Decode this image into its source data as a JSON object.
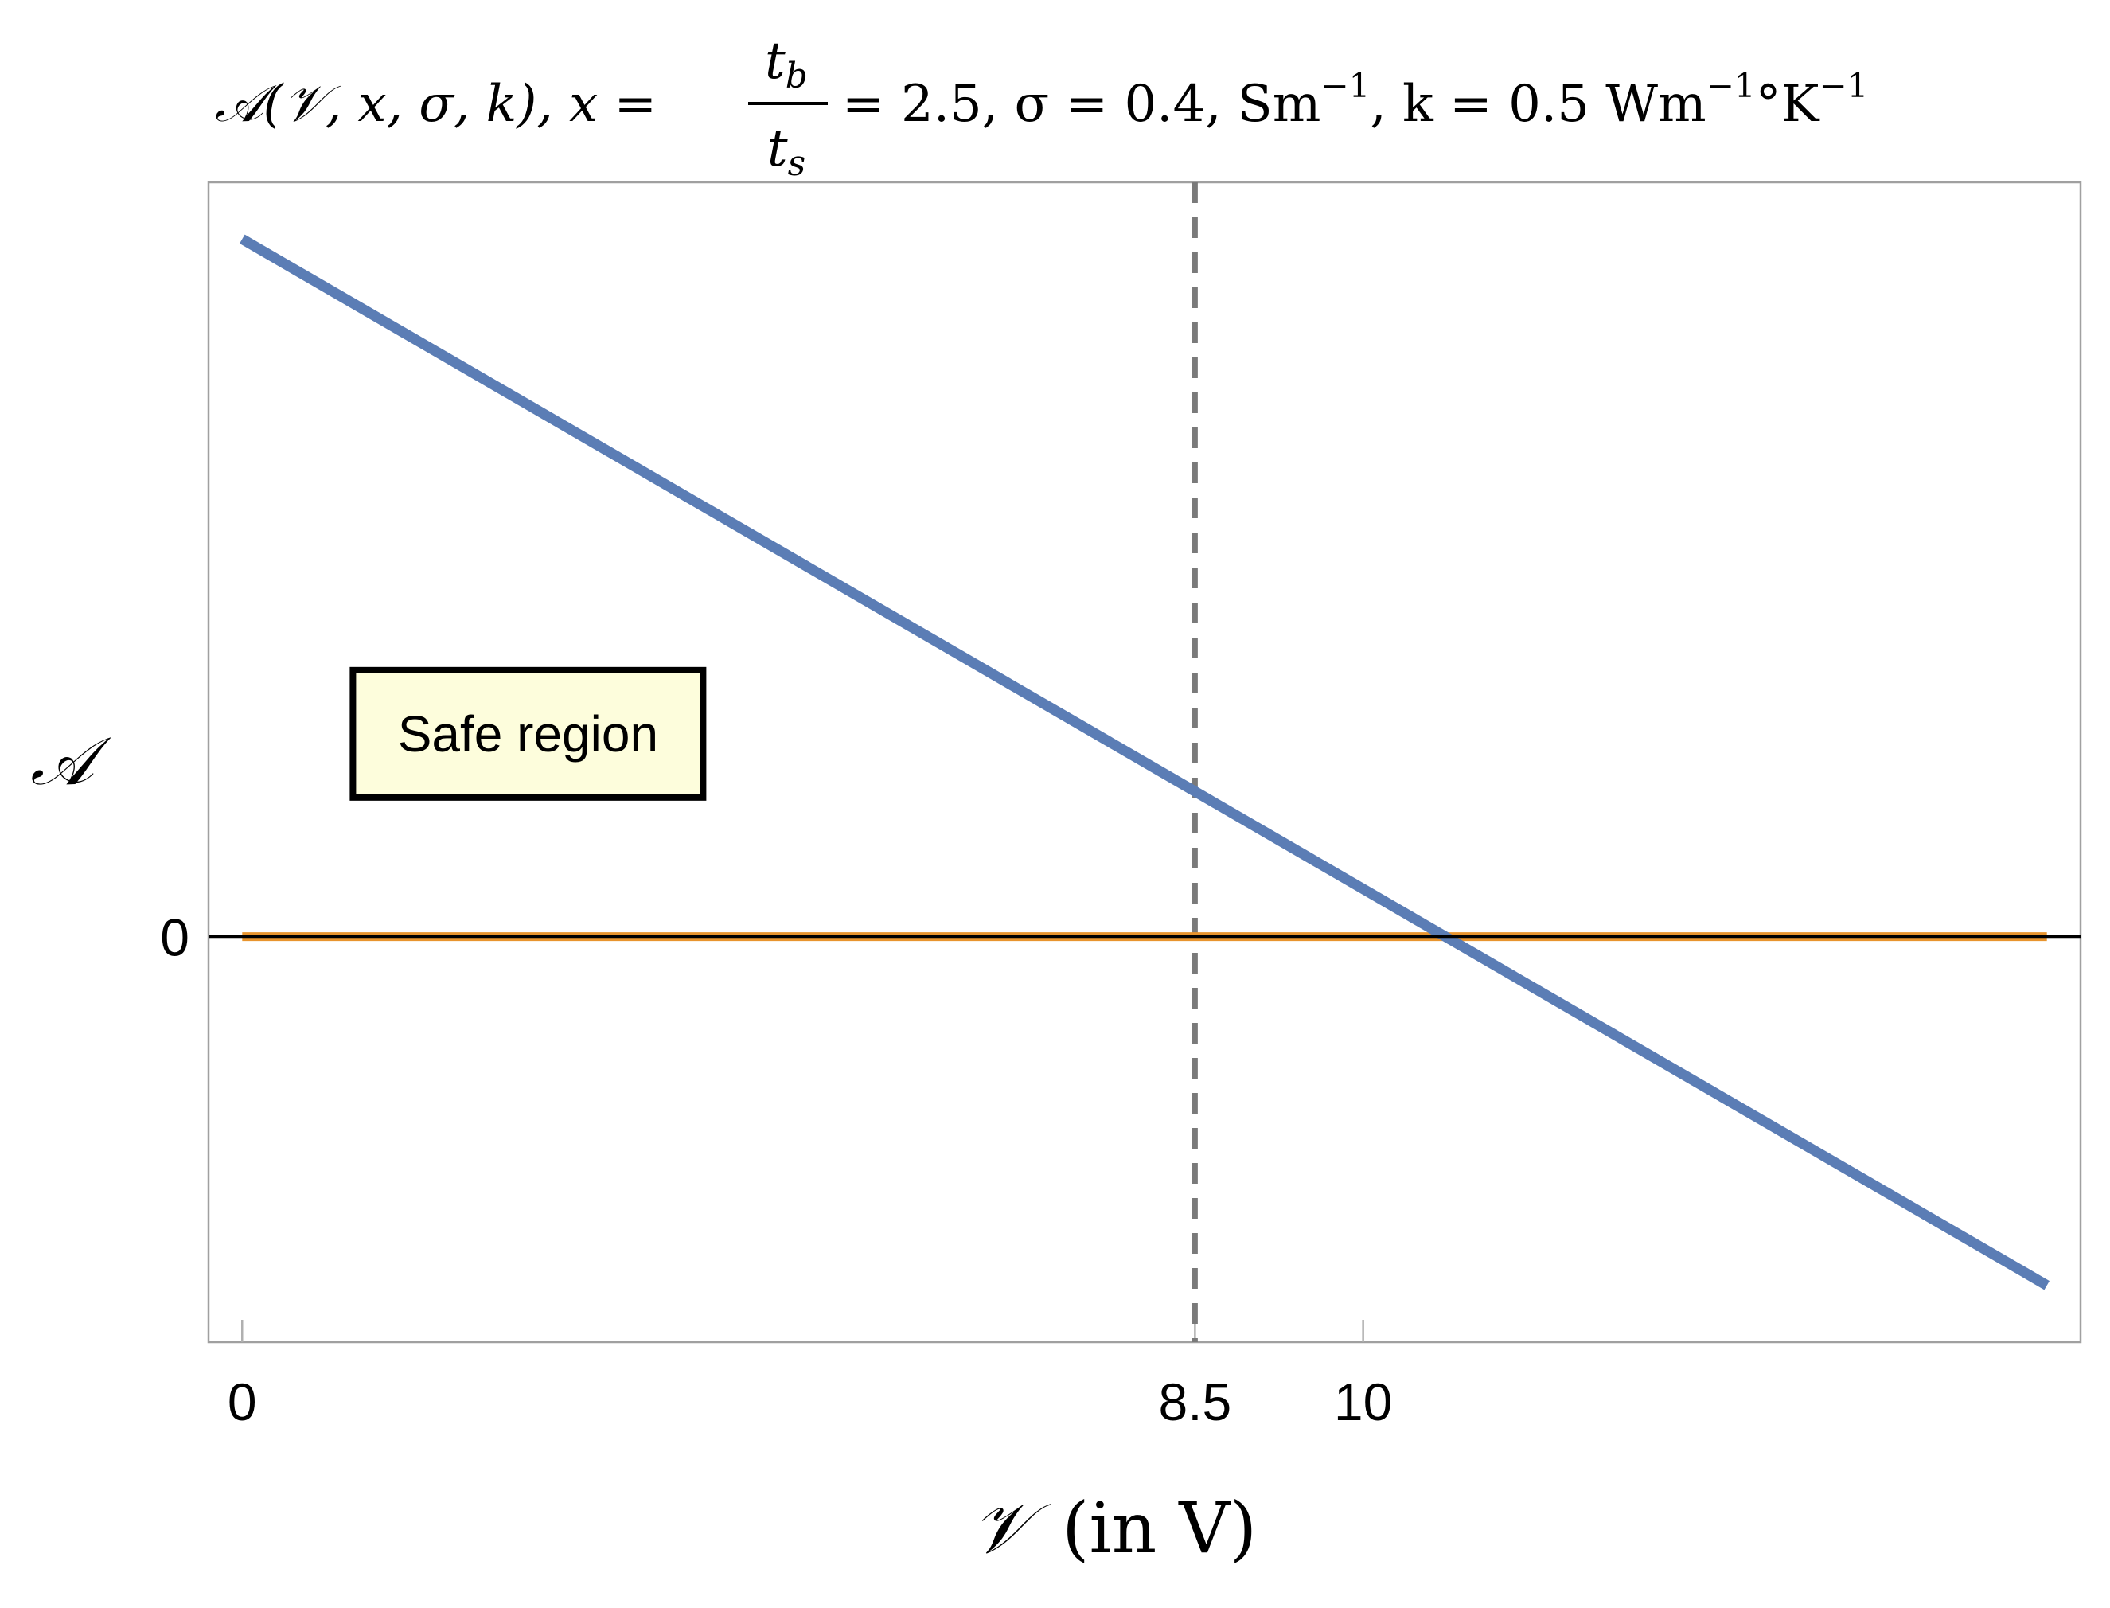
{
  "chart_data": {
    "type": "line",
    "title": {
      "lhs": "𝒜(𝒱, x, σ, k),  x =",
      "frac_num": "t",
      "frac_num_sub": "b",
      "frac_den": "t",
      "frac_den_sub": "s",
      "rhs_1": "= 2.5,  σ = 0.4, Sm",
      "rhs_1_sup": "−1",
      "rhs_2": ",  k = 0.5 Wm",
      "rhs_2_sup": "−1",
      "rhs_3": "°K",
      "rhs_3_sup": "−1"
    },
    "xlabel_symbol": "𝒱",
    "xlabel_unit": "(in V)",
    "ylabel": "𝒜",
    "xlim": [
      -0.3,
      16.4
    ],
    "ylim": [
      -1.0,
      1.86
    ],
    "x_ticks": [
      {
        "value": 0,
        "label": "0"
      },
      {
        "value": 8.5,
        "label": "8.5"
      },
      {
        "value": 10,
        "label": "10"
      }
    ],
    "y_ticks": [
      {
        "value": 0,
        "label": "0"
      }
    ],
    "grid": false,
    "series": [
      {
        "points": [
          [
            0,
            1.72
          ],
          [
            16.1,
            -0.86
          ]
        ],
        "color": "#5b7db5"
      },
      {
        "points": [
          [
            0,
            0
          ],
          [
            16.1,
            0
          ]
        ],
        "color": "#e8942e"
      }
    ],
    "reference_line": {
      "x": 8.5,
      "style": "dashed",
      "color": "#7a7a7a"
    },
    "annotation": {
      "text": "Safe region",
      "x": 2.55,
      "y": 0.5,
      "background": "#fdfddc",
      "border": "#000000"
    }
  }
}
